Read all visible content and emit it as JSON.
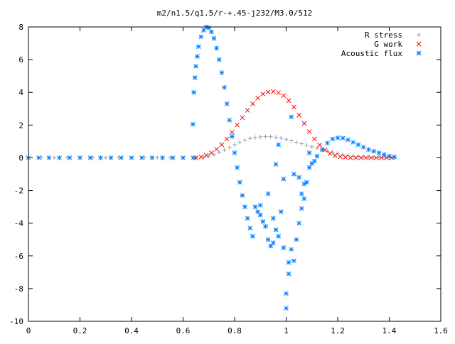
{
  "chart_data": {
    "type": "scatter",
    "title": "m2/n1.5/q1.5/r-+.45-j232/M3.0/512",
    "xlabel": "",
    "ylabel": "",
    "xlim": [
      0,
      1.6
    ],
    "ylim": [
      -10,
      8
    ],
    "x_ticks": [
      "0",
      "0.2",
      "0.4",
      "0.6",
      "0.8",
      "1",
      "1.2",
      "1.4",
      "1.6"
    ],
    "y_ticks": [
      "8",
      "6",
      "4",
      "2",
      "0",
      "-2",
      "-4",
      "-6",
      "-8",
      "-10"
    ],
    "grid": false,
    "legend_position": "top-right",
    "series": [
      {
        "name": "R stress",
        "color": "#a0a0a0",
        "marker": "plus",
        "x": [
          0.0,
          0.05,
          0.1,
          0.15,
          0.2,
          0.25,
          0.3,
          0.35,
          0.4,
          0.45,
          0.5,
          0.55,
          0.6,
          0.65,
          0.68,
          0.7,
          0.72,
          0.74,
          0.76,
          0.78,
          0.8,
          0.82,
          0.84,
          0.86,
          0.88,
          0.9,
          0.92,
          0.94,
          0.96,
          0.98,
          1.0,
          1.02,
          1.04,
          1.06,
          1.08,
          1.1,
          1.12,
          1.14,
          1.16,
          1.18,
          1.2,
          1.22,
          1.24,
          1.26,
          1.28,
          1.3,
          1.32,
          1.34,
          1.36,
          1.38,
          1.4,
          1.42
        ],
        "y": [
          0,
          0,
          0,
          0,
          0,
          0,
          0,
          0,
          0,
          0,
          0,
          0,
          0,
          0.0,
          0.04,
          0.1,
          0.2,
          0.33,
          0.48,
          0.63,
          0.8,
          0.95,
          1.08,
          1.18,
          1.24,
          1.28,
          1.3,
          1.29,
          1.25,
          1.2,
          1.12,
          1.04,
          0.95,
          0.86,
          0.77,
          0.68,
          0.59,
          0.5,
          0.42,
          0.34,
          0.27,
          0.2,
          0.14,
          0.1,
          0.07,
          0.05,
          0.03,
          0.02,
          0.01,
          0.01,
          0.0,
          0.0
        ]
      },
      {
        "name": "G work",
        "color": "#ff0000",
        "marker": "cross",
        "x": [
          0.65,
          0.67,
          0.69,
          0.71,
          0.73,
          0.75,
          0.77,
          0.79,
          0.81,
          0.83,
          0.85,
          0.87,
          0.89,
          0.91,
          0.93,
          0.95,
          0.97,
          0.99,
          1.01,
          1.03,
          1.05,
          1.07,
          1.09,
          1.11,
          1.13,
          1.15,
          1.17,
          1.19,
          1.21,
          1.23,
          1.25,
          1.27,
          1.29,
          1.31,
          1.33,
          1.35,
          1.37,
          1.39,
          1.41
        ],
        "y": [
          0.0,
          0.05,
          0.15,
          0.3,
          0.52,
          0.8,
          1.15,
          1.55,
          2.0,
          2.45,
          2.9,
          3.3,
          3.65,
          3.9,
          4.02,
          4.05,
          3.98,
          3.8,
          3.5,
          3.1,
          2.6,
          2.1,
          1.6,
          1.15,
          0.78,
          0.48,
          0.27,
          0.14,
          0.06,
          0.03,
          0.0,
          0.0,
          0.0,
          0.0,
          0.0,
          0.0,
          0.0,
          0.0,
          0.0
        ]
      },
      {
        "name": "Acoustic flux",
        "color": "#0080ff",
        "marker": "star",
        "x": [
          0.0,
          0.04,
          0.08,
          0.12,
          0.16,
          0.2,
          0.24,
          0.28,
          0.32,
          0.36,
          0.4,
          0.44,
          0.48,
          0.52,
          0.56,
          0.6,
          0.64,
          0.638,
          0.642,
          0.646,
          0.65,
          0.655,
          0.66,
          0.67,
          0.68,
          0.69,
          0.7,
          0.71,
          0.72,
          0.73,
          0.74,
          0.75,
          0.76,
          0.77,
          0.78,
          0.79,
          0.8,
          0.81,
          0.82,
          0.83,
          0.84,
          0.85,
          0.86,
          0.87,
          0.88,
          0.89,
          0.9,
          0.91,
          0.92,
          0.93,
          0.94,
          0.95,
          0.96,
          0.97,
          0.98,
          0.99,
          1.0,
          1.0,
          1.01,
          1.01,
          1.02,
          1.03,
          1.04,
          1.05,
          1.06,
          1.07,
          1.08,
          1.09,
          1.1,
          1.11,
          1.12,
          1.14,
          1.16,
          1.18,
          1.2,
          1.22,
          1.24,
          1.26,
          1.28,
          1.3,
          1.32,
          1.34,
          1.36,
          1.38,
          1.4,
          1.42,
          0.9,
          0.93,
          0.96,
          0.99,
          1.02,
          1.05,
          0.97,
          1.03,
          1.06,
          0.95,
          1.07,
          1.09
        ],
        "y": [
          0,
          0,
          0,
          0,
          0,
          0,
          0,
          0,
          0,
          0,
          0,
          0,
          0,
          0,
          0,
          0,
          0,
          2.05,
          4.0,
          4.9,
          5.6,
          6.2,
          6.8,
          7.4,
          7.8,
          8.0,
          7.95,
          7.7,
          7.3,
          6.7,
          6.0,
          5.2,
          4.3,
          3.3,
          2.3,
          1.3,
          0.3,
          -0.6,
          -1.5,
          -2.3,
          -3.0,
          -3.7,
          -4.3,
          -4.8,
          -3.0,
          -3.3,
          -3.5,
          -3.9,
          -4.2,
          -5.0,
          -5.4,
          -5.2,
          -4.4,
          -4.8,
          -3.3,
          -5.5,
          -9.2,
          -8.3,
          -7.1,
          -6.4,
          -5.6,
          -6.3,
          -5.0,
          -4.0,
          -3.1,
          -2.5,
          -1.5,
          -0.6,
          -0.35,
          -0.2,
          0.1,
          0.5,
          0.9,
          1.15,
          1.22,
          1.2,
          1.1,
          0.95,
          0.8,
          0.65,
          0.5,
          0.4,
          0.3,
          0.2,
          0.1,
          0.05,
          -2.9,
          -2.2,
          -0.4,
          -1.3,
          2.5,
          -1.2,
          0.8,
          -1.0,
          -2.2,
          -3.7,
          -1.6,
          0.3
        ]
      }
    ]
  }
}
